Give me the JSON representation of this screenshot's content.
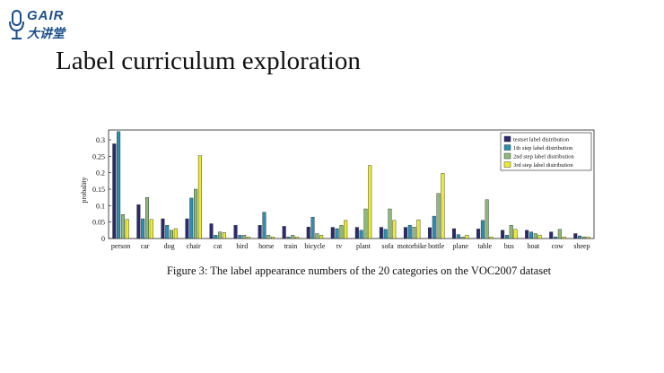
{
  "logo": {
    "latin": "GAIR",
    "cjk": "大讲堂"
  },
  "slide": {
    "title": "Label curriculum exploration"
  },
  "caption": "Figure 3: The label appearance numbers of the 20 categories on the VOC2007 dataset",
  "colors": {
    "logo": "#1a4f8a"
  },
  "chart_data": {
    "type": "bar",
    "ylabel": "probality",
    "xlabel": "",
    "ylim": [
      0,
      0.33
    ],
    "yticks": [
      0,
      0.05,
      0.1,
      0.15,
      0.2,
      0.25,
      0.3
    ],
    "ytick_labels": [
      "0",
      "0.05",
      "0.1",
      "0.15",
      "0.2",
      "0.25",
      "0.3"
    ],
    "grid": false,
    "legend_position": "top-right",
    "categories": [
      "person",
      "car",
      "dog",
      "chair",
      "cat",
      "bird",
      "horse",
      "train",
      "bicycle",
      "tv",
      "plant",
      "sofa",
      "motorbike",
      "bottle",
      "plane",
      "table",
      "bus",
      "boat",
      "cow",
      "sheep"
    ],
    "series": [
      {
        "name": "testset label distribution",
        "color": "#2b2a6e",
        "values": [
          0.288,
          0.103,
          0.06,
          0.06,
          0.045,
          0.04,
          0.04,
          0.037,
          0.035,
          0.034,
          0.034,
          0.034,
          0.034,
          0.033,
          0.03,
          0.029,
          0.025,
          0.025,
          0.02,
          0.015
        ]
      },
      {
        "name": "1th step label distribution",
        "color": "#2a8fb0",
        "values": [
          0.325,
          0.06,
          0.04,
          0.123,
          0.01,
          0.01,
          0.08,
          0.005,
          0.065,
          0.03,
          0.025,
          0.028,
          0.04,
          0.068,
          0.012,
          0.055,
          0.01,
          0.02,
          0.005,
          0.008
        ]
      },
      {
        "name": "2nd step label distribution",
        "color": "#8db97a",
        "values": [
          0.073,
          0.125,
          0.025,
          0.15,
          0.02,
          0.01,
          0.01,
          0.01,
          0.015,
          0.04,
          0.09,
          0.09,
          0.035,
          0.137,
          0.005,
          0.118,
          0.04,
          0.015,
          0.028,
          0.005
        ]
      },
      {
        "name": "3rd step label distribution",
        "color": "#ecec2c",
        "values": [
          0.058,
          0.058,
          0.03,
          0.252,
          0.018,
          0.005,
          0.005,
          0.005,
          0.01,
          0.055,
          0.222,
          0.055,
          0.057,
          0.198,
          0.01,
          0.005,
          0.028,
          0.01,
          0.005,
          0.005
        ]
      }
    ]
  }
}
